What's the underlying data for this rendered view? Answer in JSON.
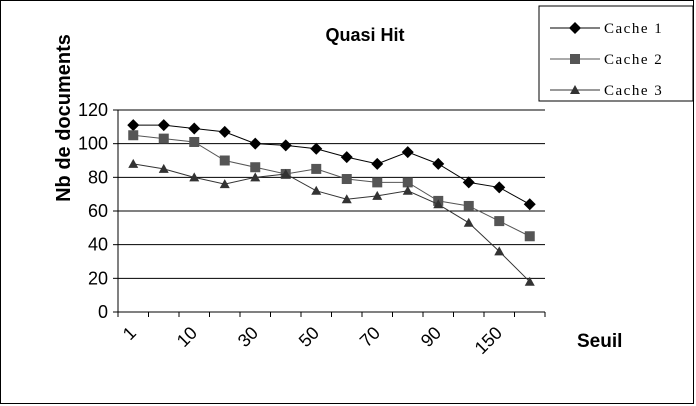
{
  "chart_data": {
    "type": "line",
    "title": "Quasi Hit",
    "xlabel": "Seuil",
    "ylabel": "Nb de documents",
    "x_tick_labels": [
      "1",
      "10",
      "30",
      "50",
      "70",
      "90",
      "150"
    ],
    "ylim": [
      0,
      120
    ],
    "yticks": [
      0,
      20,
      40,
      60,
      80,
      100,
      120
    ],
    "grid": true,
    "legend": "top-right",
    "series": [
      {
        "name": "Cache 1",
        "marker": "diamond",
        "color": "#000000",
        "values": [
          111,
          111,
          109,
          107,
          100,
          99,
          97,
          92,
          88,
          95,
          88,
          77,
          74,
          64
        ]
      },
      {
        "name": "Cache 2",
        "marker": "square",
        "color": "#555555",
        "values": [
          105,
          103,
          101,
          90,
          86,
          82,
          85,
          79,
          77,
          77,
          66,
          63,
          54,
          45
        ]
      },
      {
        "name": "Cache 3",
        "marker": "triangle",
        "color": "#333333",
        "values": [
          88,
          85,
          80,
          76,
          80,
          82,
          72,
          67,
          69,
          72,
          64,
          53,
          36,
          18
        ]
      }
    ]
  }
}
